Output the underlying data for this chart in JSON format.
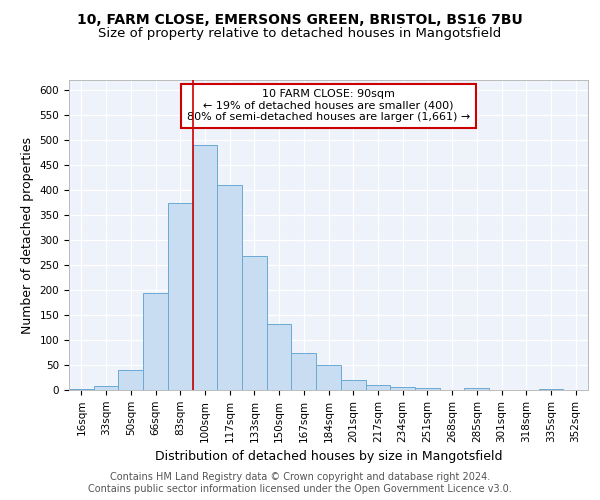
{
  "title_line1": "10, FARM CLOSE, EMERSONS GREEN, BRISTOL, BS16 7BU",
  "title_line2": "Size of property relative to detached houses in Mangotsfield",
  "xlabel": "Distribution of detached houses by size in Mangotsfield",
  "ylabel": "Number of detached properties",
  "categories": [
    "16sqm",
    "33sqm",
    "50sqm",
    "66sqm",
    "83sqm",
    "100sqm",
    "117sqm",
    "133sqm",
    "150sqm",
    "167sqm",
    "184sqm",
    "201sqm",
    "217sqm",
    "234sqm",
    "251sqm",
    "268sqm",
    "285sqm",
    "301sqm",
    "318sqm",
    "335sqm",
    "352sqm"
  ],
  "values": [
    3,
    8,
    40,
    195,
    375,
    490,
    410,
    268,
    132,
    75,
    50,
    20,
    10,
    7,
    5,
    0,
    4,
    0,
    0,
    2,
    1
  ],
  "bar_color": "#c9ddf2",
  "bar_edge_color": "#6aaad4",
  "vline_x": 4.5,
  "vline_color": "#cc0000",
  "annotation_text": "10 FARM CLOSE: 90sqm\n← 19% of detached houses are smaller (400)\n80% of semi-detached houses are larger (1,661) →",
  "annotation_box_facecolor": "white",
  "annotation_box_edgecolor": "#cc0000",
  "ylim": [
    0,
    620
  ],
  "yticks": [
    0,
    50,
    100,
    150,
    200,
    250,
    300,
    350,
    400,
    450,
    500,
    550,
    600
  ],
  "footer_line1": "Contains HM Land Registry data © Crown copyright and database right 2024.",
  "footer_line2": "Contains public sector information licensed under the Open Government Licence v3.0.",
  "plot_bg_color": "#eef2fa",
  "title1_fontsize": 10,
  "title2_fontsize": 9.5,
  "ylabel_fontsize": 9,
  "xlabel_fontsize": 9,
  "tick_fontsize": 7.5,
  "annotation_fontsize": 8,
  "footer_fontsize": 7
}
